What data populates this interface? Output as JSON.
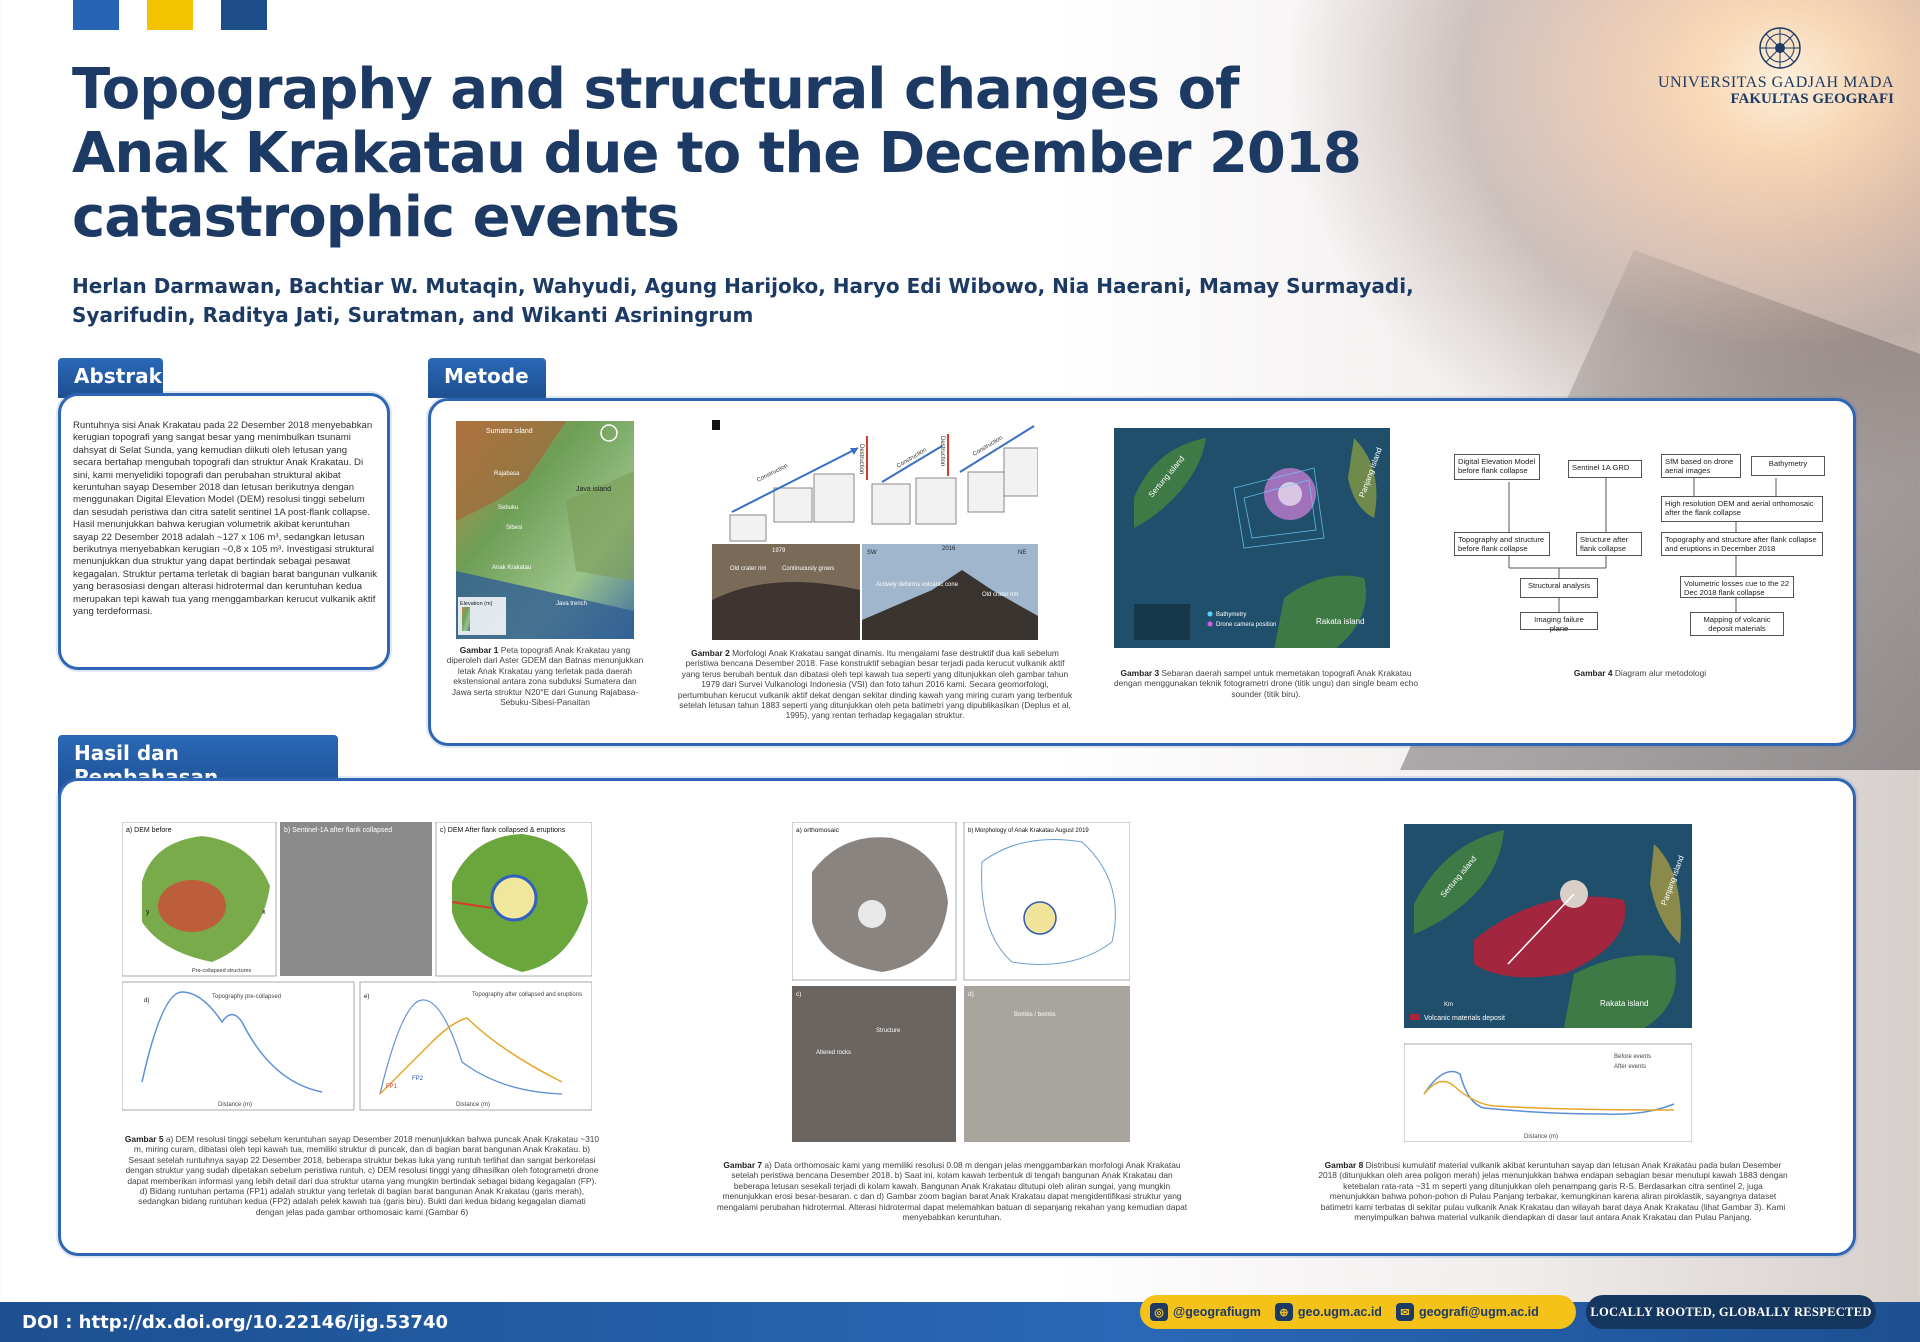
{
  "title": "Topography and structural changes of Anak Krakatau due to the December 2018 catastrophic events",
  "authors": "Herlan Darmawan, Bachtiar W. Mutaqin, Wahyudi, Agung Harijoko, Haryo Edi Wibowo, Nia Haerani, Mamay Surmayadi, Syarifudin, Raditya Jati, Suratman, and Wikanti Asriningrum",
  "logo": {
    "name": "UNIVERSITAS GADJAH MADA",
    "faculty": "FAKULTAS GEOGRAFI"
  },
  "sections": {
    "abstract": "Abstrak",
    "method": "Metode",
    "results": "Hasil dan Pembahasan"
  },
  "abstract_text": "Runtuhnya sisi Anak Krakatau pada 22 Desember 2018 menyebabkan kerugian topografi yang sangat besar yang menimbulkan tsunami dahsyat di Selat Sunda, yang kemudian diikuti oleh letusan yang secara bertahap mengubah topografi dan struktur Anak Krakatau. Di sini, kami menyelidiki topografi dan perubahan struktural akibat keruntuhan sayap Desember 2018 dan letusan berikutnya dengan menggunakan Digital Elevation Model (DEM) resolusi tinggi sebelum dan sesudah peristiwa dan citra satelit sentinel 1A post-flank collapse. Hasil menunjukkan bahwa kerugian volumetrik akibat keruntuhan sayap 22 Desember 2018 adalah ~127 x 106 m³, sedangkan letusan berikutnya menyebabkan kerugian ~0,8 x 105 m³. Investigasi struktural menunjukkan dua struktur yang dapat bertindak sebagai pesawat kegagalan. Struktur pertama terletak di bagian barat bangunan vulkanik yang berasosiasi dengan alterasi hidrotermal dan keruntuhan kedua merupakan tepi kawah tua yang menggambarkan kerucut vulkanik aktif yang terdeformasi.",
  "figures": {
    "g1": {
      "label": "Gambar 1",
      "caption": "Peta topografi Anak Krakatau yang diperoleh dari Aster GDEM dan Batnas menunjukkan letak Anak Krakatau yang terletak pada daerah ekstensional antara zona subduksi Sumatera dan Jawa serta struktur N20°E dari Gunung Rajabasa-Sebuku-Sibesi-Panaitan",
      "map_labels": {
        "a": "Sumatra island",
        "b": "Java island",
        "c": "Rajabasa",
        "d": "Sebuku",
        "e": "Sibesi",
        "f": "Anak Krakatau",
        "g": "Java trench",
        "h": "Elevation (m)"
      }
    },
    "g2": {
      "label": "Gambar 2",
      "caption": "Morfologi Anak Krakatau sangat dinamis. Itu mengalami fase destruktif dua kali sebelum peristiwa bencana Desember 2018. Fase konstruktif sebagian besar terjadi pada kerucut vulkanik aktif yang terus berubah bentuk dan dibatasi oleh tepi kawah tua seperti yang ditunjukkan oleh gambar tahun 1979 dari Survei Vulkanologi Indonesia (VSI) dan foto tahun 2016 kami. Secara geomorfologi, pertumbuhan kerucut vulkanik aktif dekat dengan sekitar dinding kawah yang miring curam yang terbentuk setelah letusan tahun 1883 seperti yang ditunjukkan oleh peta batimetri yang dipublikasikan (Deplus et al, 1995), yang rentan terhadap kegagalan struktur.",
      "labels": {
        "phase1": "Construction",
        "phase2": "Destruction",
        "phase3": "Construction",
        "phase4": "Destruction",
        "phase5": "Construction",
        "photo1_year": "1979",
        "photo1_a": "Old crater rim",
        "photo1_b": "Continuously grows",
        "photo2_sw": "SW",
        "photo2_year": "2016",
        "photo2_ne": "NE",
        "photo2_a": "Actively deforms volcanic cone",
        "photo2_b": "Old crater rim"
      }
    },
    "g3": {
      "label": "Gambar 3",
      "caption": "Sebaran daerah sampel untuk memetakan topografi Anak Krakatau dengan menggunakan teknik fotogrametri drone (titik ungu) dan single beam echo sounder (titik biru).",
      "labels": {
        "sertung": "Sertung island",
        "panjang": "Panjang island",
        "rakata": "Rakata island",
        "legend1": "Bathymetry",
        "legend2": "Drone camera position"
      }
    },
    "g4": {
      "label": "Gambar 4",
      "caption": "Diagram alur metodologi",
      "boxes": {
        "b1": "Digital Elevation Model before flank collapse",
        "b2": "Sentinel 1A GRD",
        "b3": "SfM based on drone aerial images",
        "b4": "Bathymetry",
        "b5": "High resolution DEM and aerial orthomosaic after the flank collapse",
        "b6": "Topography and structure before flank collapse",
        "b7": "Structure after flank collapse",
        "b8": "Topography and structure after flank collapse and eruptions in December 2018",
        "b9": "Structural analysis",
        "b10": "Volumetric losses cue to the 22 Dec 2018 flank collapse",
        "b11": "Imaging failure plane",
        "b12": "Mapping of volcanic deposit materials"
      }
    },
    "g5": {
      "label": "Gambar 5",
      "caption": "a) DEM resolusi tinggi sebelum keruntuhan sayap Desember 2018 menunjukkan bahwa puncak Anak Krakatau ~310 m, miring curam, dibatasi oleh tepi kawah tua, memiliki struktur di puncak, dan di bagian barat bangunan Anak Krakatau. b) Sesaat setelah runtuhnya sayap 22 Desember 2018, beberapa struktur bekas luka yang runtuh terlihat dan sangat berkorelasi dengan struktur yang sudah dipetakan sebelum peristiwa runtuh. c) DEM resolusi tinggi yang dihasilkan oleh fotogrametri drone dapat memberikan informasi yang lebih detail dari dua struktur utama yang mungkin bertindak sebagai bidang kegagalan (FP). d) Bidang runtuhan pertama (FP1) adalah struktur yang terletak di bagian barat bangunan Anak Krakatau (garis merah), sedangkan bidang runtuhan kedua (FP2) adalah pelek kawah tua (garis biru). Bukti dari kedua bidang kegagalan diamati dengan jelas pada gambar orthomosaic kami (Gambar 6)",
      "labels": {
        "a": "a) DEM before",
        "b": "b) Sentinel-1A after flank collapsed",
        "c": "c) DEM After flank collapsed & eruptions",
        "d": "d)",
        "e": "e)",
        "legend_pre": "Topography pre-collapsed",
        "legend_post": "Topography after collapsed and eruptions",
        "xlabel": "Distance (m)",
        "fp1": "FP1",
        "fp2": "FP2",
        "struct": "Pre-collapsed structures",
        "y": "y",
        "x": "x"
      }
    },
    "g7": {
      "label": "Gambar 7",
      "caption": "a) Data orthomosaic kami yang memiliki resolusi 0.08 m dengan jelas menggambarkan morfologi Anak Krakatau setelah peristiwa bencana Desember 2018. b) Saat ini, kolam kawah terbentuk di tengah bangunan Anak Krakatau dan beberapa letusan sesekali terjadi di kolam kawah. Bangunan Anak Krakatau ditutupi oleh aliran sungai, yang mungkin menunjukkan erosi besar-besaran. c dan d) Gambar zoom bagian barat Anak Krakatau dapat mengidentifikasi struktur yang mengalami perubahan hidrotermal. Alterasi hidrotermal dapat melemahkan batuan di sepanjang rekahan yang kemudian dapat menyebabkan keruntuhan.",
      "labels": {
        "a": "a) orthomosaic",
        "b": "b) Morphology of Anak Krakatau August 2019",
        "c": "c)",
        "d": "d)",
        "altered": "Altered rocks",
        "structure": "Structure",
        "bombs": "Bombs / bombs"
      }
    },
    "g8": {
      "label": "Gambar 8",
      "caption": "Distribusi kumulatif material vulkanik akibat keruntuhan sayap dan letusan Anak Krakatau pada bulan Desember 2018 (ditunjukkan oleh area poligon merah) jelas menunjukkan bahwa endapan sebagian besar menutupi kawah 1883 dengan ketebalan rata-rata ~31 m seperti yang ditunjukkan oleh penampang garis R-S. Berdasarkan citra sentinel 2, juga menunjukkan bahwa pohon-pohon di Pulau Panjang terbakar, kemungkinan karena aliran piroklastik, sayangnya dataset batimetri kami terbatas di sekitar pulau vulkanik Anak Krakatau dan wilayah barat daya Anak Krakatau (lihat Gambar 3). Kami menyimpulkan bahwa material vulkanik diendapkan di dasar laut antara Anak Krakatau dan Pulau Panjang.",
      "labels": {
        "sertung": "Sertung island",
        "panjang": "Panjang island",
        "rakata": "Rakata island",
        "legend": "Volcanic materials deposit",
        "before": "Before events",
        "after": "After events",
        "xlabel": "Distance (m)",
        "km": "Km"
      }
    }
  },
  "footer": {
    "doi": "DOI : http://dx.doi.org/10.22146/ijg.53740",
    "instagram": "@geografiugm",
    "web": "geo.ugm.ac.id",
    "email": "geografi@ugm.ac.id",
    "slogan": "LOCALLY ROOTED, GLOBALLY RESPECTED"
  },
  "colors": {
    "navy": "#1c3a64",
    "blue": "#2e66b4",
    "yellow": "#f5c21a"
  }
}
